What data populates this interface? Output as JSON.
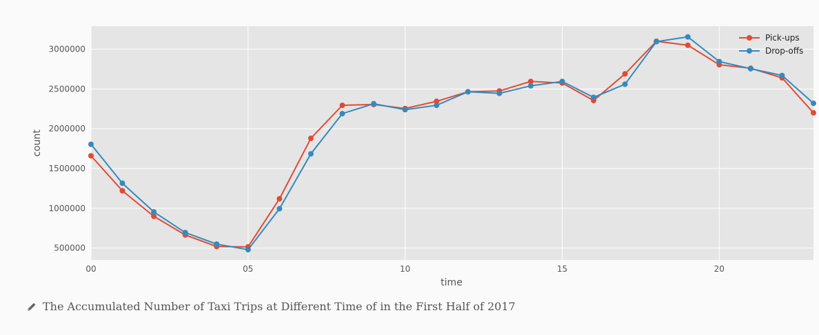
{
  "chart_data": {
    "type": "line",
    "x": [
      0,
      1,
      2,
      3,
      4,
      5,
      6,
      7,
      8,
      9,
      10,
      11,
      12,
      13,
      14,
      15,
      16,
      17,
      18,
      19,
      20,
      21,
      22,
      23
    ],
    "x_tick_labels": [
      "00",
      "05",
      "10",
      "15",
      "20"
    ],
    "x_tick_values": [
      0,
      5,
      10,
      15,
      20
    ],
    "xlim": [
      0,
      23
    ],
    "ylim": [
      350000,
      3290000
    ],
    "y_ticks": [
      500000,
      1000000,
      1500000,
      2000000,
      2500000,
      3000000
    ],
    "xlabel": "time",
    "ylabel": "count",
    "grid": true,
    "legend_position": "top-right",
    "series": [
      {
        "name": "Pick-ups",
        "color": "#e24a33",
        "values": [
          1660000,
          1220000,
          900000,
          665000,
          520000,
          515000,
          1120000,
          1880000,
          2295000,
          2305000,
          2255000,
          2345000,
          2465000,
          2475000,
          2595000,
          2575000,
          2355000,
          2690000,
          3100000,
          3050000,
          2805000,
          2760000,
          2640000,
          2200000
        ]
      },
      {
        "name": "Drop-offs",
        "color": "#348abd",
        "values": [
          1805000,
          1315000,
          955000,
          695000,
          550000,
          480000,
          995000,
          1685000,
          2190000,
          2315000,
          2240000,
          2295000,
          2465000,
          2445000,
          2540000,
          2595000,
          2395000,
          2560000,
          3095000,
          3155000,
          2845000,
          2755000,
          2670000,
          2320000
        ]
      }
    ]
  },
  "caption": {
    "icon": "pencil-icon",
    "text": "The Accumulated Number of Taxi Trips at Different Time of in the First Half of 2017"
  }
}
